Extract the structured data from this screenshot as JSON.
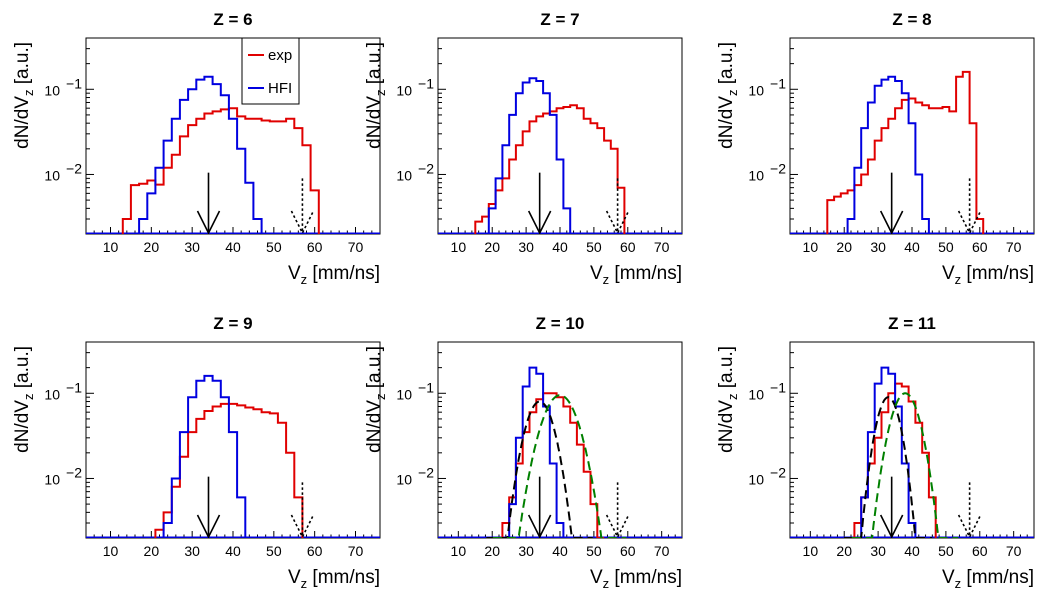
{
  "figure": {
    "xlabel_main": "V",
    "xlabel_sub": "z",
    "xlabel_unit": "[mm/ns]",
    "ylabel_main": "dN/dV",
    "ylabel_sub": "z",
    "ylabel_unit": "[a.u.]",
    "x_tick_labels": [
      "10",
      "20",
      "30",
      "40",
      "50",
      "60",
      "70"
    ],
    "y_tick_labels": [
      {
        "base": "10",
        "exp": "−1"
      },
      {
        "base": "10",
        "exp": "−2"
      }
    ]
  },
  "legend": [
    {
      "label": "exp",
      "color": "#e00000"
    },
    {
      "label": "HFI",
      "color": "#0000e0"
    }
  ],
  "colors": {
    "exp": "#e00000",
    "HFI": "#0000e0",
    "fit": "#000000",
    "fit2": "#008000",
    "arrow": "#000000"
  },
  "chart_data": [
    {
      "type": "line",
      "title": "Z = 6",
      "log_y": true,
      "xlim": [
        4,
        76
      ],
      "ylim": [
        0.002,
        0.4
      ],
      "arrow_solid": 34,
      "arrow_dashed": 57,
      "series": [
        {
          "name": "exp",
          "bin_width": 2,
          "x": [
            14,
            16,
            18,
            20,
            22,
            24,
            26,
            28,
            30,
            32,
            34,
            36,
            38,
            40,
            42,
            44,
            46,
            48,
            50,
            52,
            54,
            56,
            58,
            60
          ],
          "values": [
            0.003,
            0.0075,
            0.0078,
            0.0085,
            0.0076,
            0.012,
            0.017,
            0.028,
            0.038,
            0.045,
            0.052,
            0.055,
            0.058,
            0.06,
            0.048,
            0.045,
            0.045,
            0.043,
            0.042,
            0.042,
            0.045,
            0.035,
            0.022,
            0.0065
          ]
        },
        {
          "name": "HFI",
          "bin_width": 2,
          "x": [
            18,
            20,
            22,
            24,
            26,
            28,
            30,
            32,
            34,
            36,
            38,
            40,
            42,
            44,
            46
          ],
          "values": [
            0.003,
            0.006,
            0.012,
            0.025,
            0.045,
            0.075,
            0.1,
            0.13,
            0.14,
            0.115,
            0.085,
            0.045,
            0.02,
            0.008,
            0.003
          ]
        }
      ]
    },
    {
      "type": "line",
      "title": "Z = 7",
      "log_y": true,
      "xlim": [
        4,
        76
      ],
      "ylim": [
        0.002,
        0.4
      ],
      "arrow_solid": 34,
      "arrow_dashed": 57,
      "series": [
        {
          "name": "exp",
          "bin_width": 2,
          "x": [
            16,
            18,
            20,
            22,
            24,
            26,
            28,
            30,
            32,
            34,
            36,
            38,
            40,
            42,
            44,
            46,
            48,
            50,
            52,
            54,
            56,
            58
          ],
          "values": [
            0.0028,
            0.0032,
            0.0045,
            0.0065,
            0.009,
            0.015,
            0.022,
            0.032,
            0.042,
            0.048,
            0.052,
            0.055,
            0.06,
            0.062,
            0.065,
            0.06,
            0.045,
            0.04,
            0.035,
            0.025,
            0.02,
            0.007
          ]
        },
        {
          "name": "HFI",
          "bin_width": 2,
          "x": [
            20,
            22,
            24,
            26,
            28,
            30,
            32,
            34,
            36,
            38,
            40,
            42
          ],
          "values": [
            0.004,
            0.009,
            0.022,
            0.05,
            0.09,
            0.12,
            0.135,
            0.125,
            0.09,
            0.05,
            0.015,
            0.004
          ]
        }
      ]
    },
    {
      "type": "line",
      "title": "Z = 8",
      "log_y": true,
      "xlim": [
        4,
        76
      ],
      "ylim": [
        0.002,
        0.4
      ],
      "arrow_solid": 34,
      "arrow_dashed": 57,
      "series": [
        {
          "name": "exp",
          "bin_width": 2,
          "x": [
            16,
            18,
            20,
            22,
            24,
            26,
            28,
            30,
            32,
            34,
            36,
            38,
            40,
            42,
            44,
            46,
            48,
            50,
            52,
            54,
            56,
            58,
            60
          ],
          "values": [
            0.005,
            0.0055,
            0.006,
            0.0065,
            0.0075,
            0.01,
            0.015,
            0.025,
            0.035,
            0.045,
            0.06,
            0.075,
            0.078,
            0.07,
            0.065,
            0.06,
            0.06,
            0.062,
            0.055,
            0.14,
            0.16,
            0.04,
            0.003
          ]
        },
        {
          "name": "HFI",
          "bin_width": 2,
          "x": [
            22,
            24,
            26,
            28,
            30,
            32,
            34,
            36,
            38,
            40,
            42,
            44
          ],
          "values": [
            0.003,
            0.012,
            0.035,
            0.07,
            0.11,
            0.13,
            0.14,
            0.125,
            0.09,
            0.04,
            0.01,
            0.003
          ]
        }
      ]
    },
    {
      "type": "line",
      "title": "Z = 9",
      "log_y": true,
      "xlim": [
        4,
        76
      ],
      "ylim": [
        0.002,
        0.4
      ],
      "arrow_solid": 34,
      "arrow_dashed": 57,
      "series": [
        {
          "name": "exp",
          "bin_width": 2,
          "x": [
            22,
            24,
            26,
            28,
            30,
            32,
            34,
            36,
            38,
            40,
            42,
            44,
            46,
            48,
            50,
            52,
            54,
            56
          ],
          "values": [
            0.0025,
            0.004,
            0.008,
            0.018,
            0.035,
            0.05,
            0.062,
            0.07,
            0.075,
            0.075,
            0.072,
            0.068,
            0.065,
            0.06,
            0.058,
            0.045,
            0.02,
            0.006
          ]
        },
        {
          "name": "HFI",
          "bin_width": 2,
          "x": [
            24,
            26,
            28,
            30,
            32,
            34,
            36,
            38,
            40,
            42
          ],
          "values": [
            0.003,
            0.01,
            0.035,
            0.09,
            0.14,
            0.16,
            0.14,
            0.09,
            0.035,
            0.006
          ]
        }
      ]
    },
    {
      "type": "line",
      "title": "Z = 10",
      "log_y": true,
      "xlim": [
        4,
        76
      ],
      "ylim": [
        0.002,
        0.4
      ],
      "arrow_solid": 34,
      "arrow_dashed": 57,
      "series": [
        {
          "name": "exp",
          "bin_width": 2,
          "x": [
            24,
            26,
            28,
            30,
            32,
            34,
            36,
            38,
            40,
            42,
            44,
            46,
            48,
            50,
            52
          ],
          "values": [
            0.003,
            0.006,
            0.015,
            0.035,
            0.06,
            0.085,
            0.1,
            0.1,
            0.09,
            0.07,
            0.045,
            0.025,
            0.012,
            0.005,
            0.002
          ]
        },
        {
          "name": "HFI",
          "bin_width": 2,
          "x": [
            26,
            28,
            30,
            32,
            34,
            36,
            38,
            40
          ],
          "values": [
            0.005,
            0.03,
            0.12,
            0.2,
            0.17,
            0.07,
            0.015,
            0.003
          ]
        },
        {
          "name": "",
          "style": "fit-black",
          "mu": 34,
          "sigma": 3.5,
          "peak": 0.08
        },
        {
          "name": "",
          "style": "fit-green",
          "mu": 40,
          "sigma": 4.4,
          "peak": 0.095
        }
      ]
    },
    {
      "type": "line",
      "title": "Z = 11",
      "log_y": true,
      "xlim": [
        4,
        76
      ],
      "ylim": [
        0.002,
        0.4
      ],
      "arrow_solid": 34,
      "arrow_dashed": 57,
      "series": [
        {
          "name": "exp",
          "bin_width": 2,
          "x": [
            24,
            26,
            28,
            30,
            32,
            34,
            36,
            38,
            40,
            42,
            44,
            46
          ],
          "values": [
            0.003,
            0.006,
            0.015,
            0.03,
            0.06,
            0.1,
            0.13,
            0.12,
            0.08,
            0.045,
            0.02,
            0.006
          ]
        },
        {
          "name": "HFI",
          "bin_width": 2,
          "x": [
            26,
            28,
            30,
            32,
            34,
            36,
            38,
            40
          ],
          "values": [
            0.006,
            0.035,
            0.13,
            0.2,
            0.17,
            0.07,
            0.015,
            0.003
          ]
        },
        {
          "name": "",
          "style": "fit-black",
          "mu": 33,
          "sigma": 2.9,
          "peak": 0.09
        },
        {
          "name": "",
          "style": "fit-green",
          "mu": 38,
          "sigma": 3.5,
          "peak": 0.1
        }
      ]
    }
  ]
}
